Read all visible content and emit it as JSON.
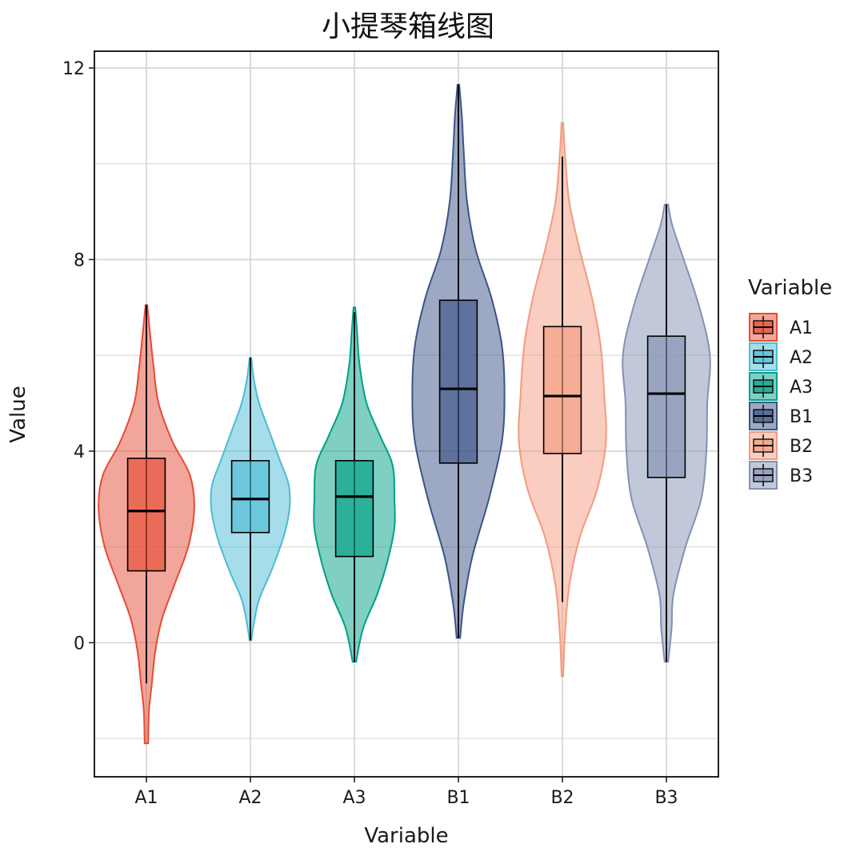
{
  "chart_data": {
    "type": "violin",
    "title": "小提琴箱线图",
    "xlabel": "Variable",
    "ylabel": "Value",
    "ylim": [
      -2.8,
      12.35
    ],
    "yticks": [
      0,
      4,
      8,
      12
    ],
    "categories": [
      "A1",
      "A2",
      "A3",
      "B1",
      "B2",
      "B3"
    ],
    "legend": {
      "title": "Variable",
      "position": "right",
      "entries": [
        "A1",
        "A2",
        "A3",
        "B1",
        "B2",
        "B3"
      ]
    },
    "grid": true,
    "series": [
      {
        "name": "A1",
        "color": "#E64B35",
        "min": -2.1,
        "max": 7.05,
        "whisker_low": -0.85,
        "whisker_high": 7.05,
        "q1": 1.5,
        "median": 2.75,
        "q3": 3.85,
        "density": [
          [
            -2.1,
            0.02
          ],
          [
            -1.4,
            0.03
          ],
          [
            -0.9,
            0.06
          ],
          [
            -0.2,
            0.1
          ],
          [
            0.5,
            0.18
          ],
          [
            1.2,
            0.32
          ],
          [
            2.0,
            0.48
          ],
          [
            2.8,
            0.55
          ],
          [
            3.5,
            0.5
          ],
          [
            4.2,
            0.3
          ],
          [
            5.0,
            0.14
          ],
          [
            5.8,
            0.08
          ],
          [
            6.5,
            0.04
          ],
          [
            7.05,
            0.01
          ]
        ]
      },
      {
        "name": "A2",
        "color": "#4DBBD5",
        "min": 0.05,
        "max": 5.95,
        "whisker_low": 0.05,
        "whisker_high": 5.95,
        "q1": 2.3,
        "median": 3.0,
        "q3": 3.8,
        "density": [
          [
            0.05,
            0.01
          ],
          [
            0.4,
            0.04
          ],
          [
            0.9,
            0.1
          ],
          [
            1.5,
            0.24
          ],
          [
            2.2,
            0.38
          ],
          [
            2.8,
            0.45
          ],
          [
            3.3,
            0.44
          ],
          [
            3.8,
            0.34
          ],
          [
            4.4,
            0.22
          ],
          [
            5.0,
            0.1
          ],
          [
            5.5,
            0.04
          ],
          [
            5.95,
            0.01
          ]
        ]
      },
      {
        "name": "A3",
        "color": "#00A087",
        "min": -0.4,
        "max": 7.0,
        "whisker_low": -0.4,
        "whisker_high": 6.9,
        "q1": 1.8,
        "median": 3.05,
        "q3": 3.8,
        "density": [
          [
            -0.4,
            0.02
          ],
          [
            0.3,
            0.1
          ],
          [
            1.0,
            0.26
          ],
          [
            1.7,
            0.38
          ],
          [
            2.4,
            0.46
          ],
          [
            3.0,
            0.46
          ],
          [
            3.7,
            0.44
          ],
          [
            4.3,
            0.3
          ],
          [
            5.0,
            0.14
          ],
          [
            5.8,
            0.06
          ],
          [
            6.5,
            0.03
          ],
          [
            7.0,
            0.01
          ]
        ]
      },
      {
        "name": "B1",
        "color": "#3C5488",
        "min": 0.1,
        "max": 11.65,
        "whisker_low": 0.1,
        "whisker_high": 11.65,
        "q1": 3.75,
        "median": 5.3,
        "q3": 7.15,
        "density": [
          [
            0.1,
            0.02
          ],
          [
            0.8,
            0.06
          ],
          [
            1.8,
            0.16
          ],
          [
            3.0,
            0.35
          ],
          [
            4.2,
            0.5
          ],
          [
            5.2,
            0.53
          ],
          [
            6.2,
            0.5
          ],
          [
            7.2,
            0.38
          ],
          [
            8.2,
            0.2
          ],
          [
            9.2,
            0.1
          ],
          [
            10.3,
            0.06
          ],
          [
            11.0,
            0.04
          ],
          [
            11.65,
            0.01
          ]
        ]
      },
      {
        "name": "B2",
        "color": "#F39B7F",
        "min": -0.7,
        "max": 10.85,
        "whisker_low": 0.85,
        "whisker_high": 10.15,
        "q1": 3.95,
        "median": 5.15,
        "q3": 6.6,
        "density": [
          [
            -0.7,
            0.01
          ],
          [
            0.2,
            0.03
          ],
          [
            1.2,
            0.08
          ],
          [
            2.2,
            0.2
          ],
          [
            3.2,
            0.4
          ],
          [
            4.2,
            0.5
          ],
          [
            5.2,
            0.48
          ],
          [
            6.2,
            0.44
          ],
          [
            7.2,
            0.34
          ],
          [
            8.2,
            0.2
          ],
          [
            9.2,
            0.08
          ],
          [
            10.2,
            0.03
          ],
          [
            10.85,
            0.01
          ]
        ]
      },
      {
        "name": "B3",
        "color": "#8491B4",
        "min": -0.4,
        "max": 9.15,
        "whisker_low": -0.4,
        "whisker_high": 9.15,
        "q1": 3.45,
        "median": 5.2,
        "q3": 6.4,
        "density": [
          [
            -0.4,
            0.02
          ],
          [
            0.3,
            0.06
          ],
          [
            1.0,
            0.08
          ],
          [
            2.0,
            0.22
          ],
          [
            3.0,
            0.4
          ],
          [
            4.0,
            0.46
          ],
          [
            5.0,
            0.47
          ],
          [
            6.0,
            0.5
          ],
          [
            7.0,
            0.38
          ],
          [
            8.0,
            0.2
          ],
          [
            8.7,
            0.07
          ],
          [
            9.15,
            0.02
          ]
        ]
      }
    ]
  }
}
